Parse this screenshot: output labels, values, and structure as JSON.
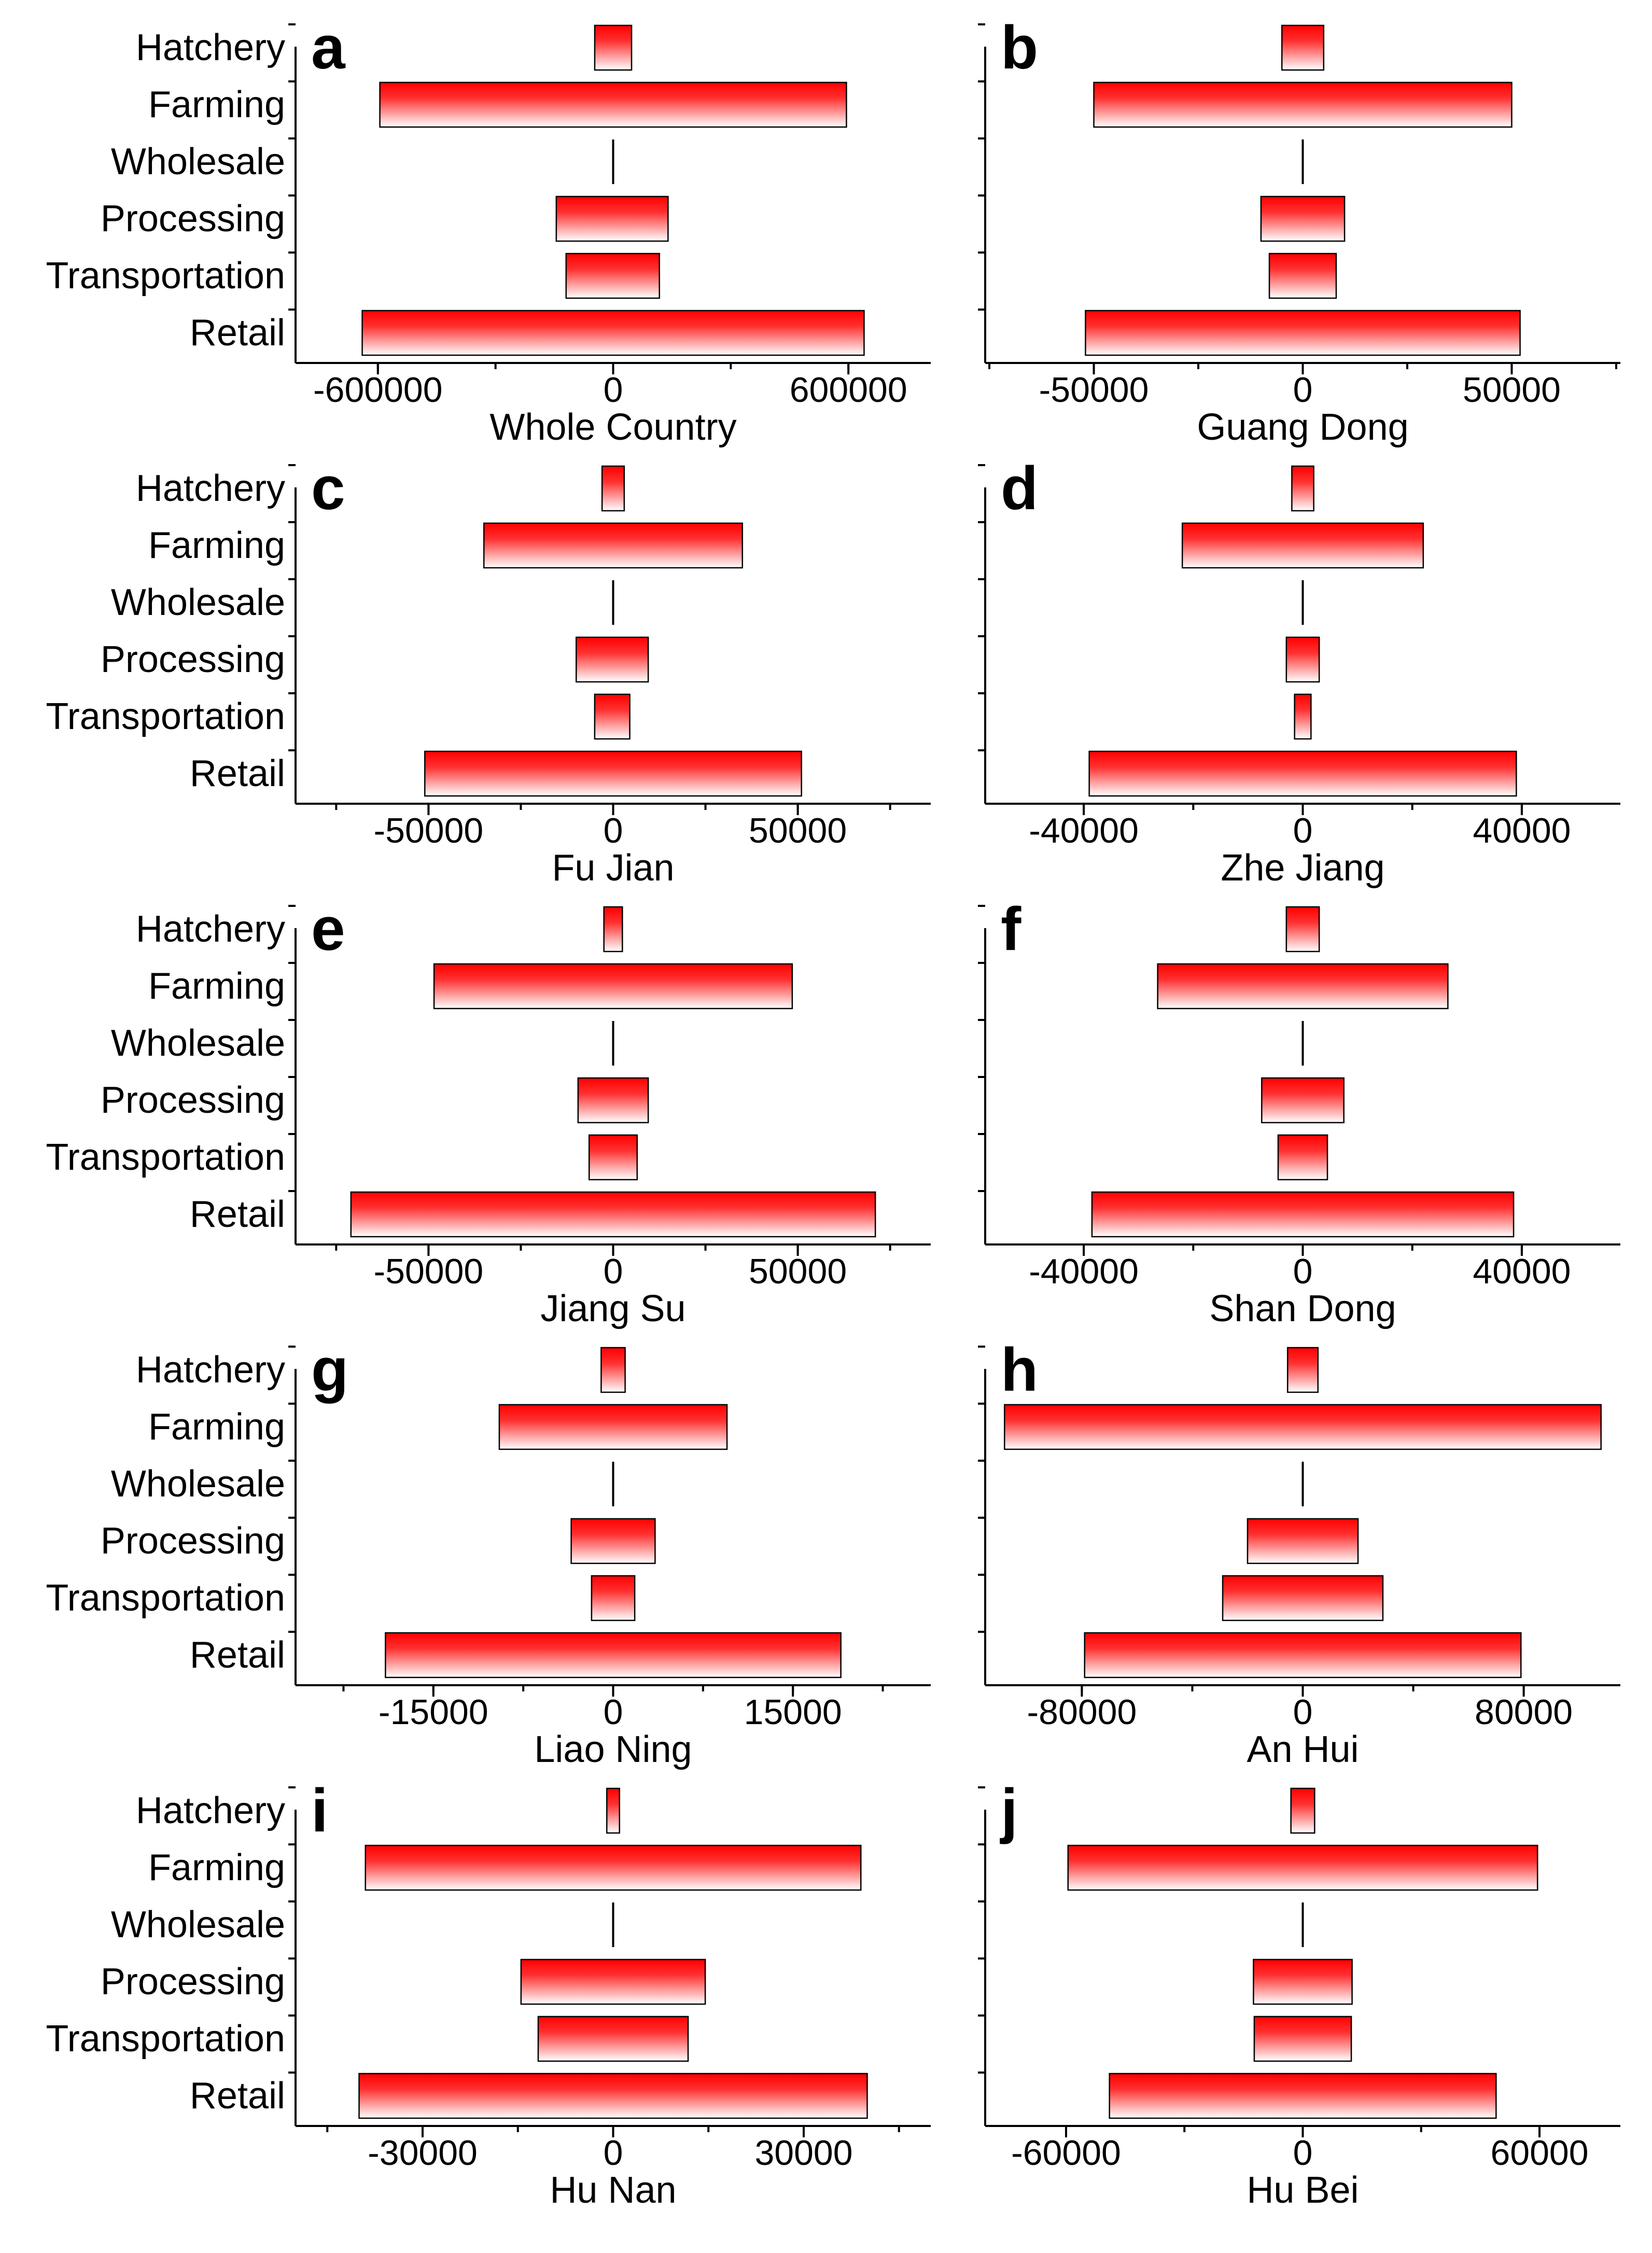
{
  "figure": {
    "description_colors": {
      "bar_top": "#ff0000",
      "bar_bottom": "#ffffff",
      "axis": "#000000"
    }
  },
  "chart_data": [
    {
      "panel": "a",
      "type": "bar",
      "orientation": "horizontal",
      "xlabel": "Whole Country",
      "categories": [
        "Hatchery",
        "Farming",
        "Wholesale",
        "Processing",
        "Transportation",
        "Retail"
      ],
      "intervals": [
        [
          -47000,
          47000
        ],
        [
          -595000,
          595000
        ],
        [
          0,
          0
        ],
        [
          -145000,
          140000
        ],
        [
          -120000,
          118000
        ],
        [
          -640000,
          640000
        ]
      ],
      "xlim": [
        -810000,
        810000
      ],
      "xticks": [
        -600000,
        0,
        600000
      ],
      "xtick_labels": [
        "-600000",
        "0",
        "600000"
      ]
    },
    {
      "panel": "b",
      "type": "bar",
      "orientation": "horizontal",
      "xlabel": "Guang Dong",
      "categories": [
        "Hatchery",
        "Farming",
        "Wholesale",
        "Processing",
        "Transportation",
        "Retail"
      ],
      "intervals": [
        [
          -5000,
          5000
        ],
        [
          -50000,
          50000
        ],
        [
          0,
          0
        ],
        [
          -10000,
          10000
        ],
        [
          -8000,
          8000
        ],
        [
          -52000,
          52000
        ]
      ],
      "xlim": [
        -76000,
        76000
      ],
      "xticks": [
        -50000,
        0,
        50000
      ],
      "xtick_labels": [
        "-50000",
        "0",
        "50000"
      ]
    },
    {
      "panel": "c",
      "type": "bar",
      "orientation": "horizontal",
      "xlabel": "Fu Jian",
      "categories": [
        "Hatchery",
        "Farming",
        "Wholesale",
        "Processing",
        "Transportation",
        "Retail"
      ],
      "intervals": [
        [
          -3000,
          3000
        ],
        [
          -35000,
          35000
        ],
        [
          0,
          0
        ],
        [
          -10000,
          9500
        ],
        [
          -5000,
          4500
        ],
        [
          -51000,
          51000
        ]
      ],
      "xlim": [
        -86000,
        86000
      ],
      "xticks": [
        -50000,
        0,
        50000
      ],
      "xtick_labels": [
        "-50000",
        "0",
        "50000"
      ]
    },
    {
      "panel": "d",
      "type": "bar",
      "orientation": "horizontal",
      "xlabel": "Zhe Jiang",
      "categories": [
        "Hatchery",
        "Farming",
        "Wholesale",
        "Processing",
        "Transportation",
        "Retail"
      ],
      "intervals": [
        [
          -2000,
          2000
        ],
        [
          -22000,
          22000
        ],
        [
          0,
          0
        ],
        [
          -3000,
          3000
        ],
        [
          -1500,
          1500
        ],
        [
          -39000,
          39000
        ]
      ],
      "xlim": [
        -58000,
        58000
      ],
      "xticks": [
        -40000,
        0,
        40000
      ],
      "xtick_labels": [
        "-40000",
        "0",
        "40000"
      ]
    },
    {
      "panel": "e",
      "type": "bar",
      "orientation": "horizontal",
      "xlabel": "Jiang Su",
      "categories": [
        "Hatchery",
        "Farming",
        "Wholesale",
        "Processing",
        "Transportation",
        "Retail"
      ],
      "intervals": [
        [
          -2500,
          2500
        ],
        [
          -48500,
          48500
        ],
        [
          0,
          0
        ],
        [
          -9500,
          9500
        ],
        [
          -6500,
          6500
        ],
        [
          -71000,
          71000
        ]
      ],
      "xlim": [
        -86000,
        86000
      ],
      "xticks": [
        -50000,
        0,
        50000
      ],
      "xtick_labels": [
        "-50000",
        "0",
        "50000"
      ]
    },
    {
      "panel": "f",
      "type": "bar",
      "orientation": "horizontal",
      "xlabel": "Shan Dong",
      "categories": [
        "Hatchery",
        "Farming",
        "Wholesale",
        "Processing",
        "Transportation",
        "Retail"
      ],
      "intervals": [
        [
          -3000,
          3000
        ],
        [
          -26500,
          26500
        ],
        [
          0,
          0
        ],
        [
          -7500,
          7500
        ],
        [
          -4500,
          4500
        ],
        [
          -38500,
          38500
        ]
      ],
      "xlim": [
        -58000,
        58000
      ],
      "xticks": [
        -40000,
        0,
        40000
      ],
      "xtick_labels": [
        "-40000",
        "0",
        "40000"
      ]
    },
    {
      "panel": "g",
      "type": "bar",
      "orientation": "horizontal",
      "xlabel": "Liao Ning",
      "categories": [
        "Hatchery",
        "Farming",
        "Wholesale",
        "Processing",
        "Transportation",
        "Retail"
      ],
      "intervals": [
        [
          -1000,
          1000
        ],
        [
          -9500,
          9500
        ],
        [
          0,
          0
        ],
        [
          -3500,
          3500
        ],
        [
          -1800,
          1800
        ],
        [
          -19000,
          19000
        ]
      ],
      "xlim": [
        -26500,
        26500
      ],
      "xticks": [
        -15000,
        0,
        15000
      ],
      "xtick_labels": [
        "-15000",
        "0",
        "15000"
      ]
    },
    {
      "panel": "h",
      "type": "bar",
      "orientation": "horizontal",
      "xlabel": "An Hui",
      "categories": [
        "Hatchery",
        "Farming",
        "Wholesale",
        "Processing",
        "Transportation",
        "Retail"
      ],
      "intervals": [
        [
          -5500,
          5500
        ],
        [
          -108000,
          108000
        ],
        [
          0,
          0
        ],
        [
          -20000,
          20000
        ],
        [
          -29000,
          29000
        ],
        [
          -79000,
          79000
        ]
      ],
      "xlim": [
        -115000,
        115000
      ],
      "xticks": [
        -80000,
        0,
        80000
      ],
      "xtick_labels": [
        "-80000",
        "0",
        "80000"
      ]
    },
    {
      "panel": "i",
      "type": "bar",
      "orientation": "horizontal",
      "xlabel": "Hu Nan",
      "categories": [
        "Hatchery",
        "Farming",
        "Wholesale",
        "Processing",
        "Transportation",
        "Retail"
      ],
      "intervals": [
        [
          -1000,
          1000
        ],
        [
          -39000,
          39000
        ],
        [
          0,
          0
        ],
        [
          -14500,
          14500
        ],
        [
          -11800,
          11800
        ],
        [
          -40000,
          40000
        ]
      ],
      "xlim": [
        -50000,
        50000
      ],
      "xticks": [
        -30000,
        0,
        30000
      ],
      "xtick_labels": [
        "-30000",
        "0",
        "30000"
      ]
    },
    {
      "panel": "j",
      "type": "bar",
      "orientation": "horizontal",
      "xlabel": "Hu Bei",
      "categories": [
        "Hatchery",
        "Farming",
        "Wholesale",
        "Processing",
        "Transportation",
        "Retail"
      ],
      "intervals": [
        [
          -3000,
          3000
        ],
        [
          -59500,
          59500
        ],
        [
          0,
          0
        ],
        [
          -12500,
          12500
        ],
        [
          -12300,
          12300
        ],
        [
          -49000,
          49000
        ]
      ],
      "xlim": [
        -80500,
        80500
      ],
      "xticks": [
        -60000,
        0,
        60000
      ],
      "xtick_labels": [
        "-60000",
        "0",
        "60000"
      ]
    }
  ]
}
